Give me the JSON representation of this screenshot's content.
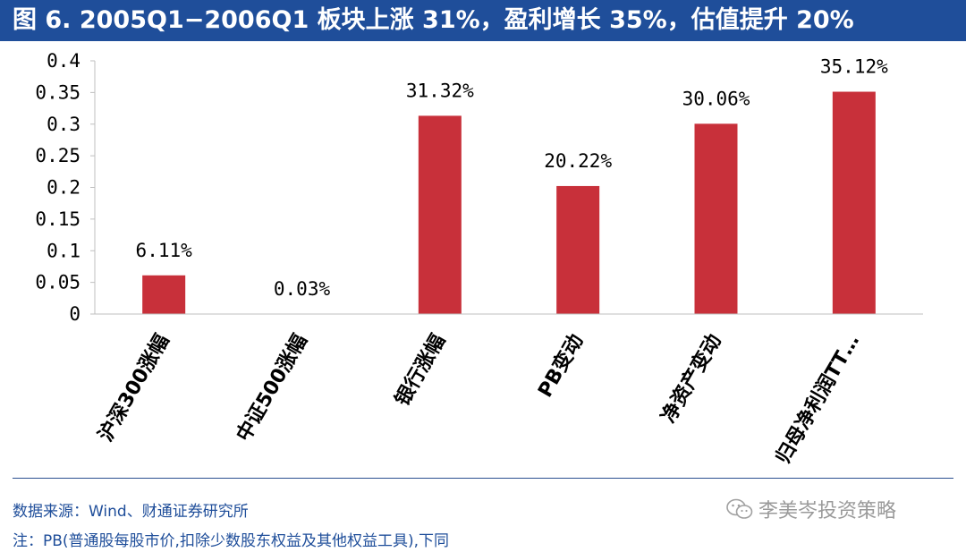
{
  "header": {
    "title": "图 6. 2005Q1−2006Q1 板块上涨 31%，盈利增长 35%，估值提升 20%"
  },
  "chart_data": {
    "type": "bar",
    "categories": [
      "沪深300涨幅",
      "中证500涨幅",
      "银行涨幅",
      "PB变动",
      "净资产变动",
      "归母净利润TT…"
    ],
    "values": [
      0.0611,
      0.0003,
      0.3132,
      0.2022,
      0.3006,
      0.3512
    ],
    "data_labels": [
      "6.11%",
      "0.03%",
      "31.32%",
      "20.22%",
      "30.06%",
      "35.12%"
    ],
    "y_ticks": [
      "0",
      "0.05",
      "0.1",
      "0.15",
      "0.2",
      "0.25",
      "0.3",
      "0.35",
      "0.4"
    ],
    "ylim": [
      0,
      0.4
    ],
    "grid": false,
    "bar_color": "#c8303a"
  },
  "footer": {
    "source": "数据来源：Wind、财通证券研究所",
    "note": "注：PB(普通股每股市价,扣除少数股东权益及其他权益工具),下同",
    "watermark": "李美岑投资策略"
  },
  "colors": {
    "title_bg": "#1f4e9a",
    "footer_text": "#1f4e9a",
    "axis": "#bfbfbf"
  }
}
